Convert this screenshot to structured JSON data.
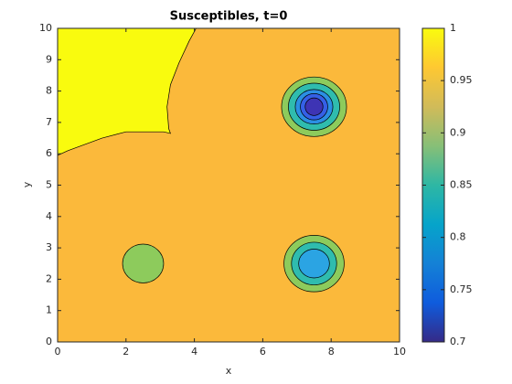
{
  "chart_data": {
    "type": "contour",
    "title": "Susceptibles, t=0",
    "x_label": "x",
    "y_label": "y",
    "xlim": [
      0,
      10
    ],
    "ylim": [
      0,
      10
    ],
    "xticks": [
      0,
      2,
      4,
      6,
      8,
      10
    ],
    "yticks": [
      0,
      1,
      2,
      3,
      4,
      5,
      6,
      7,
      8,
      9,
      10
    ],
    "background": {
      "level": 0.95,
      "color": "#fbb93b"
    },
    "regions": [
      {
        "level": 1,
        "color": "#f9fb0e",
        "polygon": [
          [
            0,
            10
          ],
          [
            0,
            5.95
          ],
          [
            0.3,
            6.1
          ],
          [
            0.8,
            6.3
          ],
          [
            1.3,
            6.5
          ],
          [
            2,
            6.7
          ],
          [
            3.1,
            6.7
          ],
          [
            3.3,
            6.65
          ],
          [
            3.25,
            6.8
          ],
          [
            3.2,
            7.5
          ],
          [
            3.3,
            8.2
          ],
          [
            3.55,
            8.9
          ],
          [
            3.85,
            9.6
          ],
          [
            4.05,
            10
          ]
        ]
      },
      {
        "level": 0.9,
        "color": "#8dcb5c",
        "ellipse": [
          7.5,
          7.5,
          0.95,
          0.95
        ]
      },
      {
        "level": 0.85,
        "color": "#2fbcae",
        "ellipse": [
          7.5,
          7.5,
          0.75,
          0.75
        ]
      },
      {
        "level": 0.8,
        "color": "#2b8fe3",
        "ellipse": [
          7.5,
          7.5,
          0.55,
          0.55
        ]
      },
      {
        "level": 0.75,
        "color": "#3560e6",
        "ellipse": [
          7.5,
          7.5,
          0.4,
          0.42
        ]
      },
      {
        "level": 0.7,
        "color": "#3e34b4",
        "ellipse": [
          7.5,
          7.5,
          0.26,
          0.28
        ]
      },
      {
        "level": 0.9,
        "color": "#8dcb5c",
        "ellipse": [
          7.5,
          2.5,
          0.88,
          0.9
        ]
      },
      {
        "level": 0.85,
        "color": "#2fbcae",
        "ellipse": [
          7.5,
          2.5,
          0.66,
          0.68
        ]
      },
      {
        "level": 0.8,
        "color": "#2ba4e3",
        "ellipse": [
          7.5,
          2.5,
          0.45,
          0.46
        ]
      },
      {
        "level": 0.9,
        "color": "#8dcb5c",
        "ellipse": [
          2.5,
          2.5,
          0.6,
          0.62
        ]
      }
    ],
    "colorbar": {
      "lim": [
        0.7,
        1
      ],
      "ticks": [
        0.7,
        0.75,
        0.8,
        0.85,
        0.9,
        0.95,
        1
      ],
      "colors": [
        "#352a87",
        "#0f5cdd",
        "#1481d6",
        "#06a4ca",
        "#2eb7a4",
        "#87bf77",
        "#d1bb59",
        "#fec832",
        "#f9fb0e"
      ]
    }
  }
}
